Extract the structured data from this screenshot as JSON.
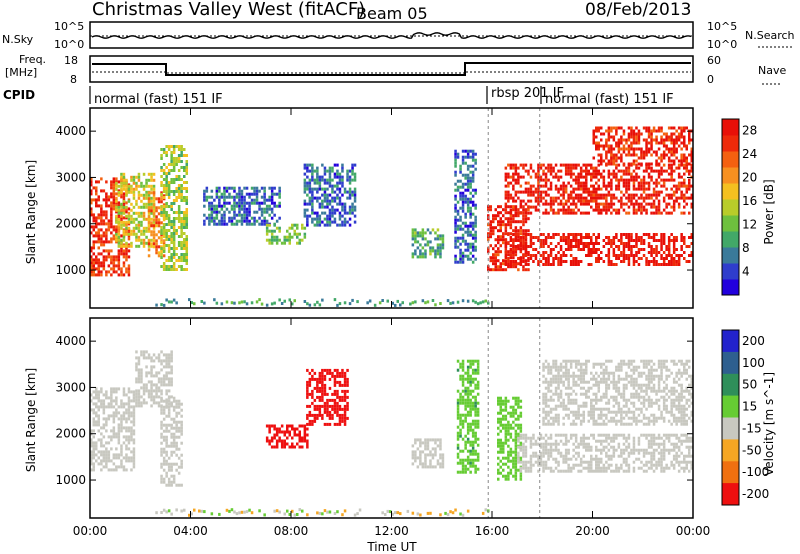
{
  "header": {
    "title": "Christmas Valley West (fitACF)",
    "beam": "Beam 05",
    "date": "08/Feb/2013"
  },
  "noise_panel": {
    "left_label": "N.Sky",
    "left_ticks": [
      "10^5",
      "10^0"
    ],
    "right_label": "N.Search",
    "right_ticks": [
      "10^5",
      "10^0"
    ]
  },
  "freq_panel": {
    "left_label_line1": "Freq.",
    "left_label_line2": "[MHz]",
    "left_ticks": [
      "18",
      "8"
    ],
    "right_label": "Nave",
    "right_ticks": [
      "60",
      "0"
    ]
  },
  "cpid": {
    "label": "CPID",
    "segments": [
      {
        "text": "normal (fast) 151 IF",
        "start_hour": 0
      },
      {
        "text": "rbsp 201 IF",
        "start_hour": 15.85
      },
      {
        "text": "normal (fast) 151 IF",
        "start_hour": 17.9
      }
    ]
  },
  "chart_data": [
    {
      "type": "heatmap",
      "parameter": "Power",
      "xlabel": "Time UT",
      "ylabel": "Slant Range [km]",
      "xlim": [
        "00:00",
        "24:00"
      ],
      "ylim": [
        180,
        4500
      ],
      "yticks": [
        1000,
        2000,
        3000,
        4000
      ],
      "colorbar": {
        "label": "Power [dB]",
        "ticks": [
          4,
          8,
          12,
          16,
          20,
          24,
          28
        ],
        "range": [
          0,
          30
        ],
        "colors": [
          "#2200dd",
          "#2f3dcc",
          "#3a7a9a",
          "#42a868",
          "#6ec03e",
          "#b8cc2a",
          "#f4c020",
          "#f79020",
          "#f46010",
          "#ee2a0a",
          "#e81008"
        ]
      },
      "regions": [
        {
          "t": [
            0.0,
            1.6
          ],
          "r": [
            900,
            3000
          ],
          "power": 26
        },
        {
          "t": [
            1.0,
            2.5
          ],
          "r": [
            1500,
            3100
          ],
          "power": 16
        },
        {
          "t": [
            2.3,
            2.9
          ],
          "r": [
            1300,
            2700
          ],
          "power": 22
        },
        {
          "t": [
            2.8,
            3.8
          ],
          "r": [
            1000,
            3700
          ],
          "power": 14
        },
        {
          "t": [
            4.5,
            7.5
          ],
          "r": [
            2000,
            2800
          ],
          "power": 6
        },
        {
          "t": [
            7.0,
            8.5
          ],
          "r": [
            1600,
            2000
          ],
          "power": 12
        },
        {
          "t": [
            8.5,
            10.5
          ],
          "r": [
            2000,
            3300
          ],
          "power": 6
        },
        {
          "t": [
            12.8,
            14.0
          ],
          "r": [
            1300,
            1900
          ],
          "power": 10
        },
        {
          "t": [
            14.5,
            15.3
          ],
          "r": [
            1200,
            3600
          ],
          "power": 6
        },
        {
          "t": [
            15.8,
            17.5
          ],
          "r": [
            1000,
            2400
          ],
          "power": 28
        },
        {
          "t": [
            16.5,
            24.0
          ],
          "r": [
            1100,
            1800
          ],
          "power": 29
        },
        {
          "t": [
            16.5,
            24.0
          ],
          "r": [
            2200,
            3300
          ],
          "power": 28
        },
        {
          "t": [
            20.0,
            24.0
          ],
          "r": [
            3300,
            4100
          ],
          "power": 27
        }
      ]
    },
    {
      "type": "heatmap",
      "parameter": "Velocity",
      "xlabel": "Time UT",
      "ylabel": "Slant Range [km]",
      "xlim": [
        "00:00",
        "24:00"
      ],
      "ylim": [
        180,
        4500
      ],
      "yticks": [
        1000,
        2000,
        3000,
        4000
      ],
      "xticks": [
        "00:00",
        "04:00",
        "08:00",
        "12:00",
        "16:00",
        "20:00",
        "00:00"
      ],
      "colorbar": {
        "label": "Velocity [m s^-1]",
        "ticks": [
          200,
          100,
          50,
          15,
          -15,
          -50,
          -100,
          -200
        ],
        "colors": [
          "#2222cc",
          "#2e5f8f",
          "#2f8f5a",
          "#66cc33",
          "#c8c8c0",
          "#f5a623",
          "#f07010",
          "#ee1010"
        ]
      },
      "regions": [
        {
          "t": [
            0.0,
            1.8
          ],
          "r": [
            1200,
            3000
          ],
          "velocity": 0
        },
        {
          "t": [
            1.8,
            3.2
          ],
          "r": [
            2600,
            3800
          ],
          "velocity": 0
        },
        {
          "t": [
            2.8,
            3.6
          ],
          "r": [
            900,
            2800
          ],
          "velocity": 0
        },
        {
          "t": [
            7.0,
            8.6
          ],
          "r": [
            1700,
            2200
          ],
          "velocity": -200
        },
        {
          "t": [
            8.6,
            10.2
          ],
          "r": [
            2200,
            3400
          ],
          "velocity": -150
        },
        {
          "t": [
            12.8,
            14.0
          ],
          "r": [
            1300,
            1900
          ],
          "velocity": 0
        },
        {
          "t": [
            14.6,
            15.4
          ],
          "r": [
            1200,
            3600
          ],
          "velocity": 40
        },
        {
          "t": [
            16.2,
            17.2
          ],
          "r": [
            1000,
            2800
          ],
          "velocity": 30
        },
        {
          "t": [
            17.0,
            24.0
          ],
          "r": [
            1200,
            2000
          ],
          "velocity": 0
        },
        {
          "t": [
            18.0,
            24.0
          ],
          "r": [
            2200,
            3600
          ],
          "velocity": 0
        }
      ]
    }
  ]
}
